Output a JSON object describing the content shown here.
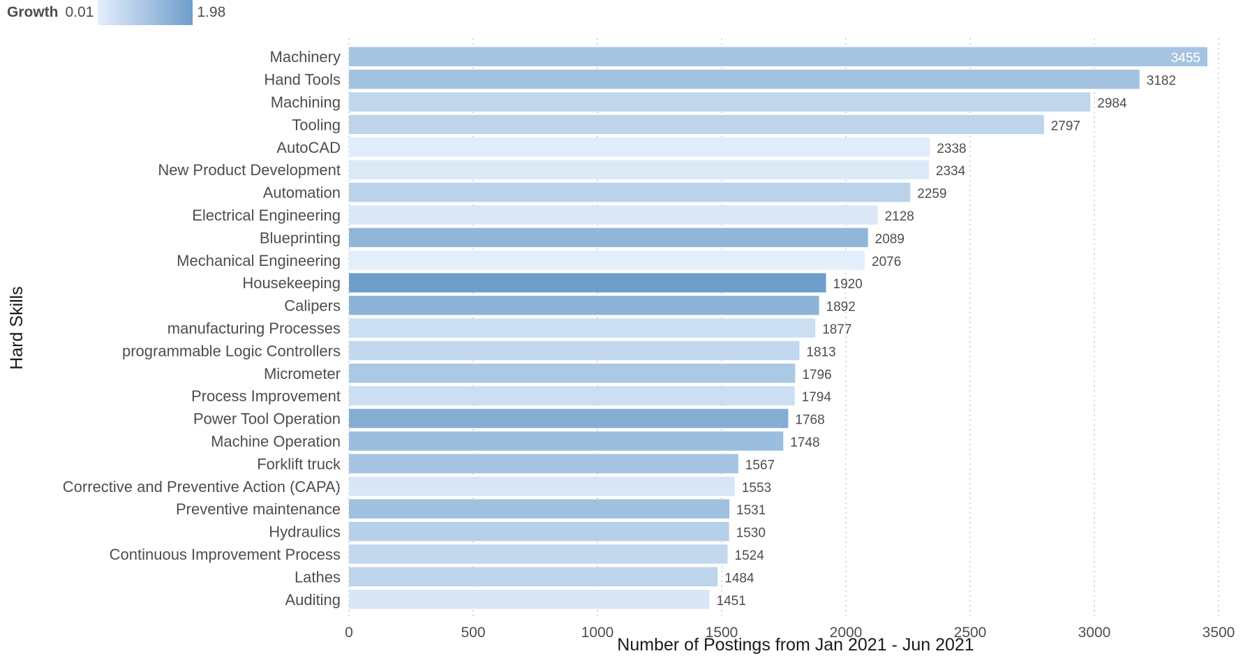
{
  "legend": {
    "title": "Growth",
    "min_label": "0.01",
    "max_label": "1.98",
    "color_low": "#e3eefb",
    "color_high": "#6e9ecb"
  },
  "chart_data": {
    "type": "bar",
    "orientation": "horizontal",
    "xlabel": "Number of Postings from Jan 2021 - Jun 2021",
    "ylabel": "Hard Skills",
    "xlim": [
      0,
      3500
    ],
    "xticks": [
      0,
      500,
      1000,
      1500,
      2000,
      2500,
      3000,
      3500
    ],
    "grid": "vertical dotted",
    "legend_position": "top-left",
    "color_scale": {
      "name": "Growth",
      "min": 0.01,
      "max": 1.98
    },
    "categories": [
      "Machinery",
      "Hand Tools",
      "Machining",
      "Tooling",
      "AutoCAD",
      "New Product Development",
      "Automation",
      "Electrical Engineering",
      "Blueprinting",
      "Mechanical Engineering",
      "Housekeeping",
      "Calipers",
      "manufacturing Processes",
      "programmable Logic Controllers",
      "Micrometer",
      "Process Improvement",
      "Power Tool Operation",
      "Machine Operation",
      "Forklift truck",
      "Corrective and Preventive Action (CAPA)",
      "Preventive maintenance",
      "Hydraulics",
      "Continuous Improvement Process",
      "Lathes",
      "Auditing"
    ],
    "values": [
      3455,
      3182,
      2984,
      2797,
      2338,
      2334,
      2259,
      2128,
      2089,
      2076,
      1920,
      1892,
      1877,
      1813,
      1796,
      1794,
      1768,
      1748,
      1567,
      1553,
      1531,
      1530,
      1524,
      1484,
      1451
    ],
    "growth": [
      1.05,
      1.1,
      0.6,
      0.65,
      0.05,
      0.12,
      0.7,
      0.15,
      1.4,
      0.01,
      1.98,
      1.45,
      0.4,
      0.55,
      0.95,
      0.4,
      1.6,
      1.2,
      1.05,
      0.2,
      1.15,
      0.75,
      0.55,
      0.65,
      0.2
    ]
  }
}
